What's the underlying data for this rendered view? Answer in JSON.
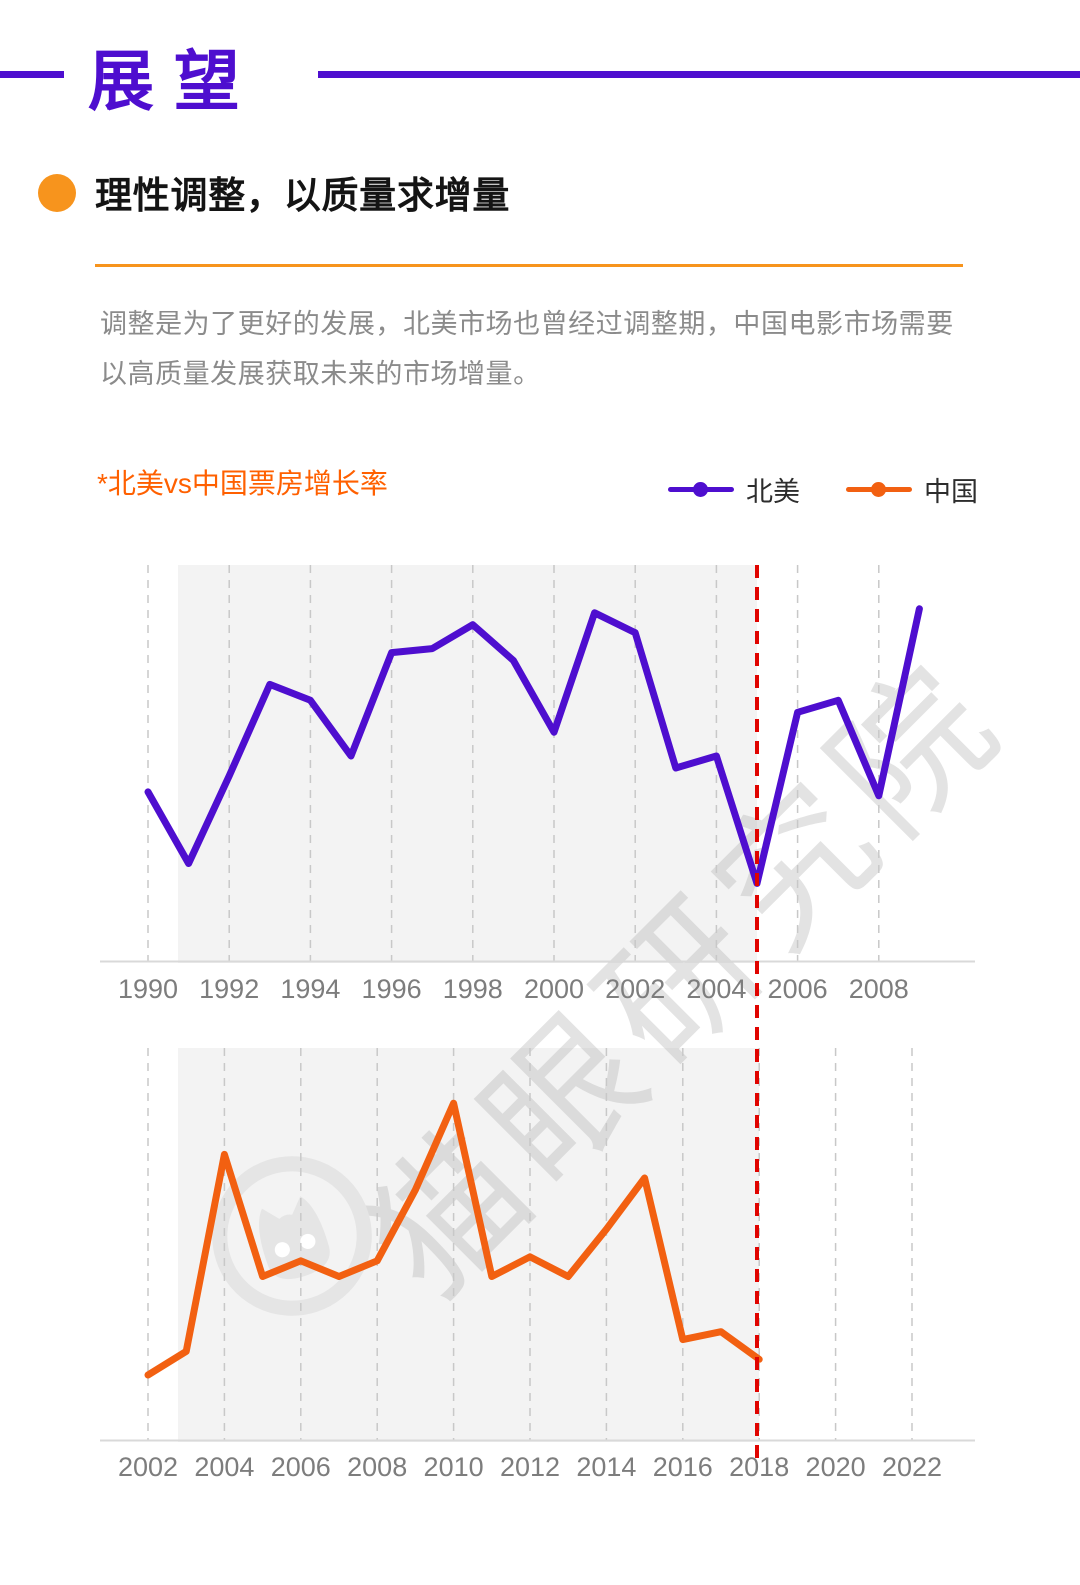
{
  "page_title": "展望",
  "section": {
    "heading": "理性调整，以质量求增量",
    "body": "调整是为了更好的发展，北美市场也曾经过调整期，中国电影市场需要以高质量发展获取未来的市场增量。"
  },
  "chart_header": {
    "label": "*北美vs中国票房增长率",
    "legend": [
      {
        "name": "北美",
        "color": "#4E0ECF"
      },
      {
        "name": "中国",
        "color": "#F26011"
      }
    ]
  },
  "watermark": {
    "text": "猫眼研究院",
    "logo": "maoyan-cat-logo"
  },
  "colors": {
    "purple": "#4E0ECF",
    "orange_accent": "#F7941D",
    "orange_text": "#FF6000",
    "china_line": "#F26011",
    "highlight_red": "#E00400",
    "band_gray": "#f3f3f3"
  },
  "chart_data": [
    {
      "type": "line",
      "title": "北美票房增长率",
      "series_name": "north-america",
      "color": "#4E0ECF",
      "x": [
        1990,
        1991,
        1992,
        1993,
        1994,
        1995,
        1996,
        1997,
        1998,
        1999,
        2000,
        2001,
        2002,
        2003,
        2004,
        2005,
        2006,
        2007,
        2008,
        2009
      ],
      "values": [
        43,
        25,
        47,
        70,
        66,
        52,
        78,
        79,
        85,
        76,
        58,
        88,
        83,
        49,
        52,
        20,
        63,
        66,
        42,
        89
      ],
      "x_ticks": [
        1990,
        1992,
        1994,
        1996,
        1998,
        2000,
        2002,
        2004,
        2006,
        2008
      ],
      "x_tick_labels": [
        "1990",
        "1992",
        "1994",
        "1996",
        "1998",
        "2000",
        "2002",
        "2004",
        "2006",
        "2008"
      ],
      "ylim": [
        0,
        100
      ],
      "note": "y-axis unlabeled in source; values are relative growth-rate positions 0-100 read from plot",
      "highlight_x": 2005,
      "band_x": [
        1990.74,
        2005
      ],
      "grid": "vertical-dashed"
    },
    {
      "type": "line",
      "title": "中国票房增长率",
      "series_name": "china",
      "color": "#F26011",
      "x": [
        2002,
        2003,
        2004,
        2005,
        2006,
        2007,
        2008,
        2009,
        2010,
        2011,
        2012,
        2013,
        2014,
        2015,
        2016,
        2017,
        2018
      ],
      "values": [
        17,
        23,
        73,
        42,
        46,
        42,
        46,
        64,
        86,
        42,
        47,
        42,
        54,
        67,
        26,
        28,
        21
      ],
      "x_ticks": [
        2002,
        2004,
        2006,
        2008,
        2010,
        2012,
        2014,
        2016,
        2018,
        2020,
        2022
      ],
      "x_tick_labels": [
        "2002",
        "2004",
        "2006",
        "2008",
        "2010",
        "2012",
        "2014",
        "2016",
        "2018",
        "2020",
        "2022"
      ],
      "ylim": [
        0,
        100
      ],
      "note": "y-axis unlabeled in source; values are relative growth-rate positions 0-100 read from plot",
      "highlight_x": 2018,
      "band_x": [
        2002.79,
        2018
      ],
      "grid": "vertical-dashed"
    }
  ]
}
